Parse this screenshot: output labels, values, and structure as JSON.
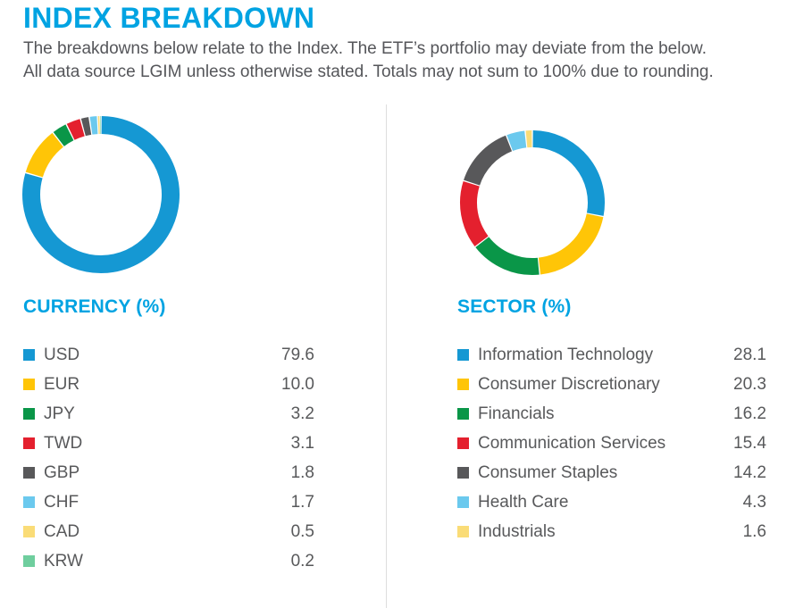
{
  "page": {
    "title": "INDEX BREAKDOWN",
    "subtitle_line1": "The breakdowns below relate to the Index. The ETF’s portfolio may deviate from the below.",
    "subtitle_line2": "All data source LGIM unless otherwise stated. Totals may not sum to 100% due to rounding."
  },
  "colors": {
    "accent_cyan": "#00A3E2",
    "body_text": "#58595B",
    "divider": "#DEDEDE"
  },
  "chart_data": [
    {
      "type": "pie",
      "variant": "donut",
      "title": "CURRENCY (%)",
      "categories": [
        "USD",
        "EUR",
        "JPY",
        "TWD",
        "GBP",
        "CHF",
        "CAD",
        "KRW"
      ],
      "values": [
        79.6,
        10.0,
        3.2,
        3.1,
        1.8,
        1.7,
        0.5,
        0.2
      ],
      "value_labels": [
        "79.6",
        "10.0",
        "3.2",
        "3.1",
        "1.8",
        "1.7",
        "0.5",
        "0.2"
      ],
      "colors": [
        "#1598D3",
        "#FFC507",
        "#0A9648",
        "#E4202E",
        "#58585A",
        "#6BC9EE",
        "#FADC77",
        "#6FCE9E"
      ],
      "start_angle_deg": 0,
      "direction": "clockwise",
      "grid": false,
      "legend_position": "below-right-aligned-values"
    },
    {
      "type": "pie",
      "variant": "donut",
      "title": "SECTOR (%)",
      "categories": [
        "Information Technology",
        "Consumer Discretionary",
        "Financials",
        "Communication Services",
        "Consumer Staples",
        "Health Care",
        "Industrials"
      ],
      "values": [
        28.1,
        20.3,
        16.2,
        15.4,
        14.2,
        4.3,
        1.6
      ],
      "value_labels": [
        "28.1",
        "20.3",
        "16.2",
        "15.4",
        "14.2",
        "4.3",
        "1.6"
      ],
      "colors": [
        "#1598D3",
        "#FFC507",
        "#0A9648",
        "#E4202E",
        "#58585A",
        "#6BC9EE",
        "#FADC77"
      ],
      "start_angle_deg": 0,
      "direction": "clockwise",
      "grid": false,
      "legend_position": "below-right-aligned-values"
    }
  ]
}
